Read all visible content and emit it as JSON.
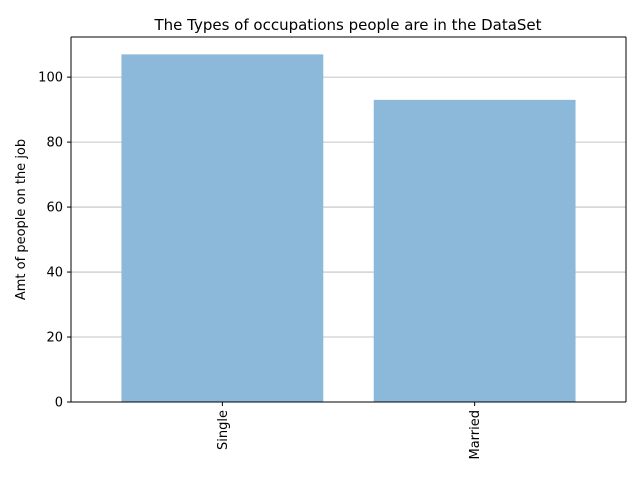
{
  "chart_data": {
    "type": "bar",
    "title": "The Types of occupations people are in the DataSet",
    "xlabel": "",
    "ylabel": "Amt of people on the job",
    "categories": [
      "Single",
      "Married"
    ],
    "values": [
      107,
      93
    ],
    "ylim": [
      0,
      112.35
    ],
    "yticks": [
      0,
      20,
      40,
      60,
      80,
      100
    ],
    "grid": "y",
    "legend": "none",
    "bar_color": "#8cb8d9"
  }
}
